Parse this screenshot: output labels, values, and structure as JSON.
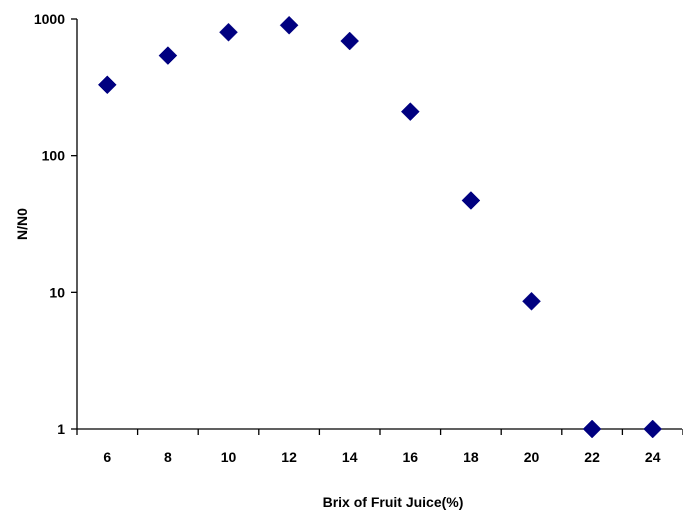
{
  "chart_data": {
    "type": "scatter",
    "title": "",
    "xlabel": "Brix of Fruit Juice(%)",
    "ylabel": "N/N0",
    "x_ticks": [
      "6",
      "8",
      "10",
      "12",
      "14",
      "16",
      "18",
      "20",
      "22",
      "24"
    ],
    "y_ticks": [
      "1",
      "10",
      "100",
      "1000"
    ],
    "xlim": [
      5,
      25
    ],
    "ylim": [
      1,
      1000
    ],
    "y_scale": "log",
    "grid": false,
    "legend": "none",
    "marker": "diamond",
    "colors": {
      "marker": "#000080",
      "axis": "#000000"
    },
    "series": [
      {
        "x": [
          6,
          8,
          10,
          12,
          14,
          16,
          18,
          20,
          22,
          24
        ],
        "y": [
          330,
          540,
          800,
          900,
          690,
          210,
          47,
          8.6,
          1,
          1
        ]
      }
    ]
  }
}
